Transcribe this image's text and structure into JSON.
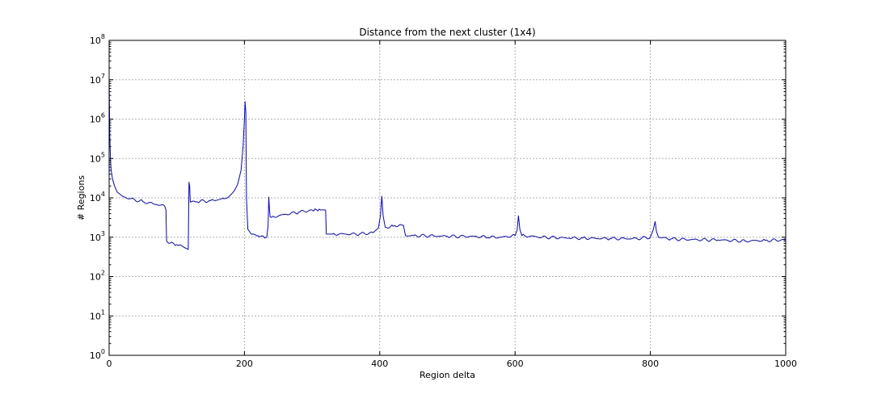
{
  "chart_data": {
    "type": "line",
    "title": "Distance from the next cluster (1x4)",
    "xlabel": "Region delta",
    "ylabel": "# Regions",
    "xlim": [
      0,
      1000
    ],
    "ylim": [
      1,
      100000000
    ],
    "yscale": "log",
    "grid": true,
    "x_ticks": [
      0,
      200,
      400,
      600,
      800,
      1000
    ],
    "y_ticks": [
      {
        "value": 1,
        "base": "10",
        "exp": "0"
      },
      {
        "value": 10,
        "base": "10",
        "exp": "1"
      },
      {
        "value": 100,
        "base": "10",
        "exp": "2"
      },
      {
        "value": 1000,
        "base": "10",
        "exp": "3"
      },
      {
        "value": 10000,
        "base": "10",
        "exp": "4"
      },
      {
        "value": 100000,
        "base": "10",
        "exp": "5"
      },
      {
        "value": 1000000,
        "base": "10",
        "exp": "6"
      },
      {
        "value": 10000000,
        "base": "10",
        "exp": "7"
      },
      {
        "value": 100000000,
        "base": "10",
        "exp": "8"
      }
    ],
    "series": [
      {
        "color": "#0000ff",
        "points": [
          [
            0,
            10000000
          ],
          [
            1,
            400000
          ],
          [
            2,
            90000
          ],
          [
            3,
            50000
          ],
          [
            5,
            30000
          ],
          [
            8,
            20000
          ],
          [
            12,
            14000
          ],
          [
            20,
            11000
          ],
          [
            30,
            9500
          ],
          [
            50,
            8000
          ],
          [
            70,
            6800
          ],
          [
            82,
            6200
          ],
          [
            84,
            5000
          ],
          [
            85,
            800
          ],
          [
            88,
            700
          ],
          [
            100,
            650
          ],
          [
            110,
            560
          ],
          [
            117,
            490
          ],
          [
            118,
            25000
          ],
          [
            119,
            20000
          ],
          [
            120,
            7800
          ],
          [
            130,
            8000
          ],
          [
            150,
            8500
          ],
          [
            170,
            9500
          ],
          [
            175,
            10000
          ],
          [
            180,
            12000
          ],
          [
            185,
            15000
          ],
          [
            190,
            22000
          ],
          [
            195,
            50000
          ],
          [
            198,
            200000
          ],
          [
            200,
            1000000
          ],
          [
            201,
            2800000
          ],
          [
            202,
            1500000
          ],
          [
            203,
            10000
          ],
          [
            205,
            1600
          ],
          [
            210,
            1200
          ],
          [
            220,
            1100
          ],
          [
            230,
            950
          ],
          [
            233,
            1000
          ],
          [
            235,
            2000
          ],
          [
            236,
            10500
          ],
          [
            237,
            5000
          ],
          [
            238,
            3300
          ],
          [
            240,
            3200
          ],
          [
            260,
            3800
          ],
          [
            280,
            4300
          ],
          [
            300,
            4900
          ],
          [
            315,
            5000
          ],
          [
            320,
            4900
          ],
          [
            321,
            1200
          ],
          [
            330,
            1200
          ],
          [
            350,
            1200
          ],
          [
            370,
            1200
          ],
          [
            390,
            1300
          ],
          [
            398,
            1700
          ],
          [
            401,
            3500
          ],
          [
            403,
            11000
          ],
          [
            405,
            3500
          ],
          [
            408,
            1800
          ],
          [
            420,
            1900
          ],
          [
            430,
            2100
          ],
          [
            435,
            2000
          ],
          [
            438,
            1100
          ],
          [
            450,
            1100
          ],
          [
            480,
            1080
          ],
          [
            500,
            1050
          ],
          [
            540,
            1050
          ],
          [
            560,
            1000
          ],
          [
            580,
            1000
          ],
          [
            600,
            1100
          ],
          [
            603,
            1500
          ],
          [
            605,
            3500
          ],
          [
            607,
            1600
          ],
          [
            610,
            1100
          ],
          [
            640,
            1000
          ],
          [
            680,
            950
          ],
          [
            700,
            950
          ],
          [
            740,
            920
          ],
          [
            780,
            920
          ],
          [
            800,
            1000
          ],
          [
            804,
            1500
          ],
          [
            807,
            2500
          ],
          [
            809,
            1400
          ],
          [
            812,
            1000
          ],
          [
            830,
            900
          ],
          [
            860,
            870
          ],
          [
            900,
            850
          ],
          [
            940,
            800
          ],
          [
            970,
            830
          ],
          [
            1000,
            850
          ]
        ]
      }
    ]
  }
}
